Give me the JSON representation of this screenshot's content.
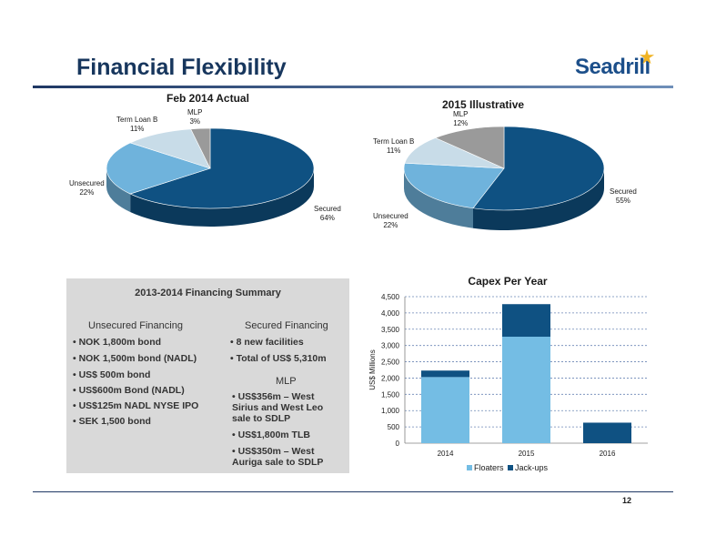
{
  "header": {
    "title": "Financial Flexibility",
    "logo_text": "Seadrill"
  },
  "footer": {
    "page_number": "12"
  },
  "colors": {
    "secured": "#0f5182",
    "unsecured": "#6fb3dc",
    "term_loan_b": "#c8dce8",
    "mlp": "#9a9a9a",
    "floaters": "#74bde4",
    "jackups": "#0f5182"
  },
  "chart_data": [
    {
      "type": "pie",
      "title": "Feb 2014 Actual",
      "slices": [
        {
          "label": "Secured",
          "value": 64,
          "text": "64%"
        },
        {
          "label": "Unsecured",
          "value": 22,
          "text": "22%"
        },
        {
          "label": "Term Loan B",
          "value": 11,
          "text": "11%"
        },
        {
          "label": "MLP",
          "value": 3,
          "text": "3%"
        }
      ]
    },
    {
      "type": "pie",
      "title": "2015 Illustrative",
      "slices": [
        {
          "label": "Secured",
          "value": 55,
          "text": "55%"
        },
        {
          "label": "Unsecured",
          "value": 22,
          "text": "22%"
        },
        {
          "label": "Term Loan B",
          "value": 11,
          "text": "11%"
        },
        {
          "label": "MLP",
          "value": 12,
          "text": "12%"
        }
      ]
    },
    {
      "type": "bar",
      "stacked": true,
      "title": "Capex Per Year",
      "ylabel": "US$ Millions",
      "xlabel": "",
      "categories": [
        "2014",
        "2015",
        "2016"
      ],
      "series": [
        {
          "name": "Floaters",
          "values": [
            2030,
            3270,
            0
          ]
        },
        {
          "name": "Jack-ups",
          "values": [
            200,
            1000,
            630
          ]
        }
      ],
      "ylim": [
        0,
        4500
      ],
      "yticks": [
        "0",
        "500",
        "1,000",
        "1,500",
        "2,000",
        "2,500",
        "3,000",
        "3,500",
        "4,000",
        "4,500"
      ],
      "grid": true,
      "legend": "bottom"
    }
  ],
  "summary": {
    "title": "2013-2014 Financing Summary",
    "unsecured": {
      "heading": "Unsecured Financing",
      "items": [
        "• NOK 1,800m bond",
        "• NOK 1,500m bond (NADL)",
        "• US$ 500m bond",
        "• US$600m Bond (NADL)",
        "• US$125m NADL NYSE IPO",
        "• SEK 1,500 bond"
      ]
    },
    "secured": {
      "heading": "Secured Financing",
      "items": [
        "• 8 new facilities",
        "• Total of US$ 5,310m"
      ]
    },
    "mlp": {
      "heading": "MLP",
      "items": [
        "• US$356m – West Sirius and West Leo sale to SDLP",
        "• US$1,800m TLB",
        "• US$350m – West Auriga sale to SDLP"
      ]
    }
  }
}
